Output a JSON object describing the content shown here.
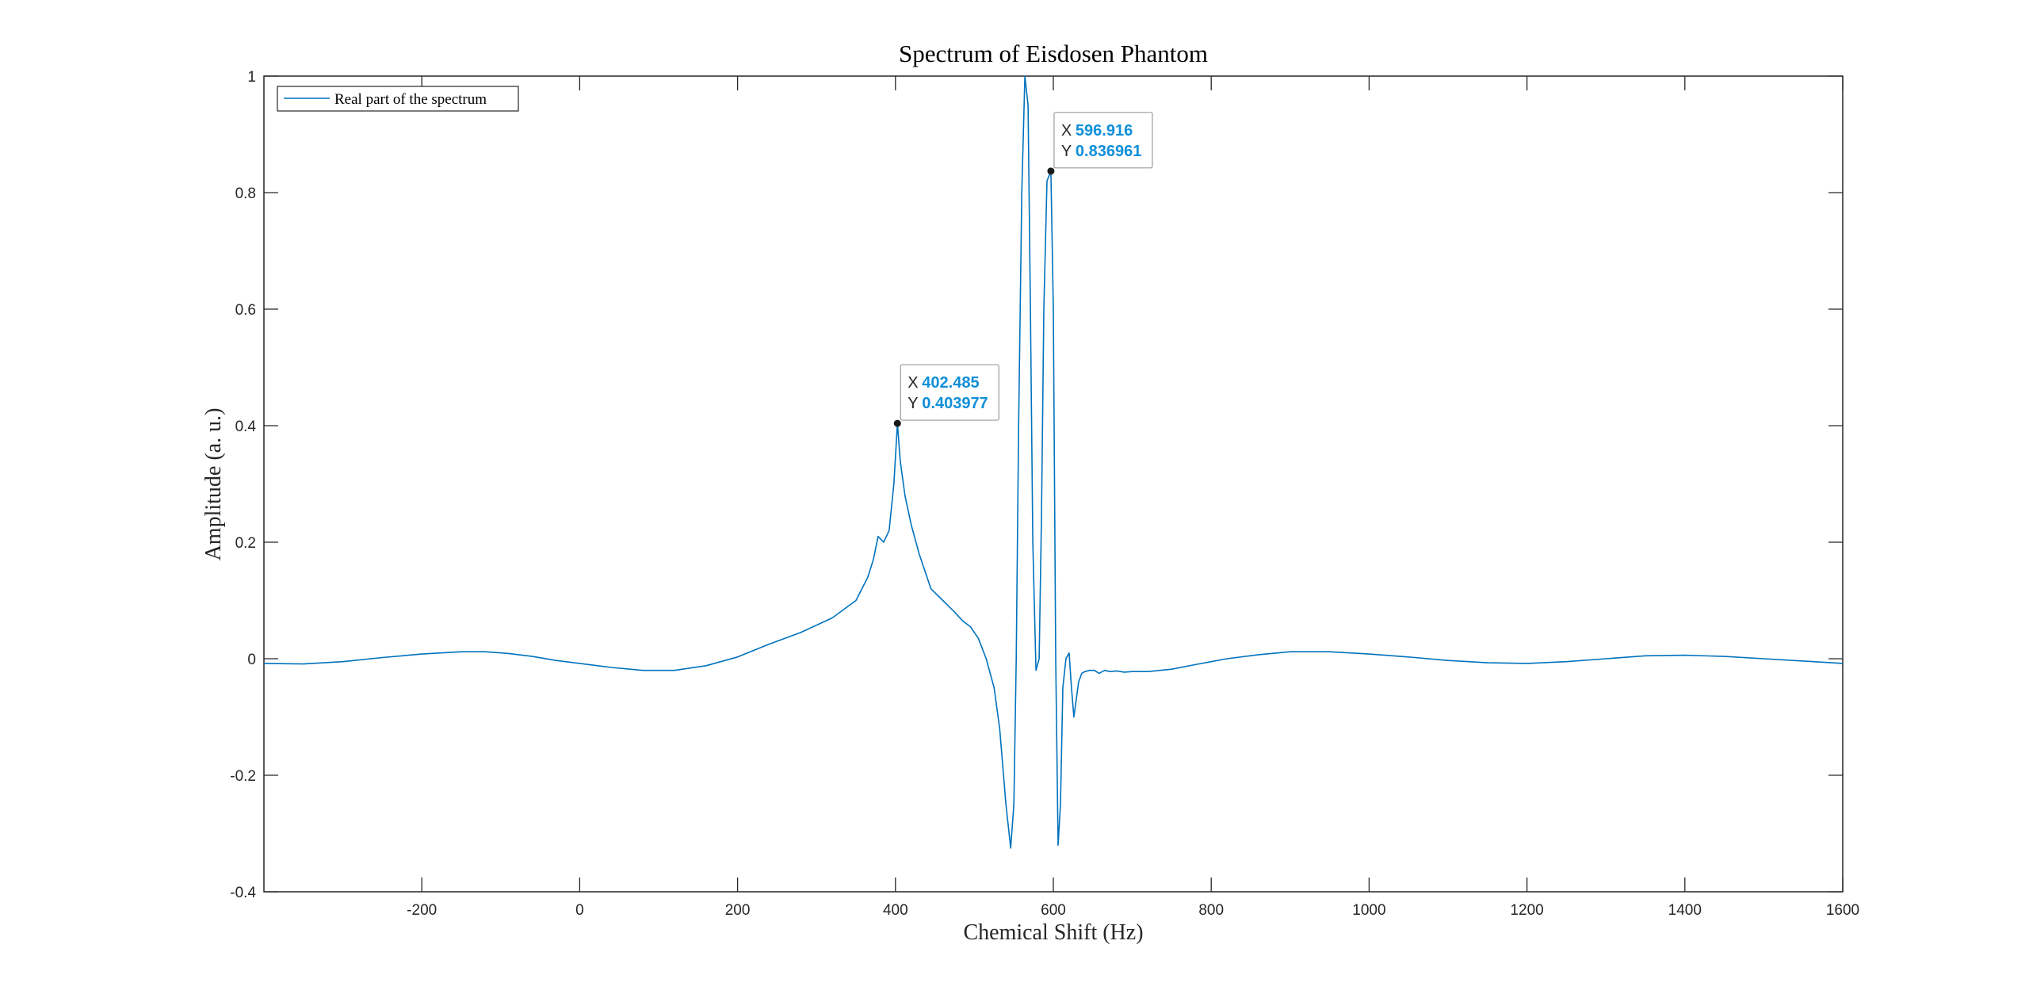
{
  "chart_data": {
    "type": "line",
    "title": "Spectrum of Eisdosen Phantom",
    "xlabel": "Chemical Shift (Hz)",
    "ylabel": "Amplitude (a. u.)",
    "xlim": [
      -400,
      1600
    ],
    "ylim": [
      -0.4,
      1
    ],
    "x_ticks": [
      -200,
      0,
      200,
      400,
      600,
      800,
      1000,
      1200,
      1400,
      1600
    ],
    "x_tick_labels": [
      "-200",
      "0",
      "200",
      "400",
      "600",
      "800",
      "1000",
      "1200",
      "1400",
      "1600"
    ],
    "y_ticks": [
      -0.4,
      -0.2,
      0,
      0.2,
      0.4,
      0.6,
      0.8,
      1
    ],
    "y_tick_labels": [
      "-0.4",
      "-0.2",
      "0",
      "0.2",
      "0.4",
      "0.6",
      "0.8",
      "1"
    ],
    "grid": false,
    "legend_position": "top-left",
    "line_color": "#0072BD",
    "series": [
      {
        "name": "Real part of the spectrum",
        "x": [
          -400,
          -350,
          -300,
          -250,
          -200,
          -150,
          -120,
          -90,
          -60,
          -30,
          0,
          40,
          80,
          120,
          160,
          200,
          240,
          280,
          320,
          350,
          365,
          372,
          378,
          385,
          392,
          398,
          402.485,
          406,
          412,
          420,
          430,
          445,
          460,
          475,
          485,
          495,
          505,
          515,
          525,
          532,
          540,
          546,
          550,
          553,
          556,
          560,
          564,
          568,
          571,
          574,
          578,
          582,
          585,
          588,
          592,
          596.916,
          600,
          603,
          606,
          609,
          612,
          616,
          620,
          623,
          626,
          629,
          632,
          636,
          640,
          646,
          652,
          658,
          665,
          672,
          680,
          690,
          700,
          720,
          750,
          780,
          820,
          860,
          900,
          950,
          1000,
          1050,
          1100,
          1150,
          1200,
          1250,
          1300,
          1350,
          1400,
          1450,
          1500,
          1550,
          1600
        ],
        "y": [
          -0.008,
          -0.009,
          -0.005,
          0.002,
          0.008,
          0.012,
          0.012,
          0.009,
          0.004,
          -0.003,
          -0.008,
          -0.015,
          -0.02,
          -0.02,
          -0.012,
          0.003,
          0.025,
          0.045,
          0.07,
          0.1,
          0.14,
          0.17,
          0.21,
          0.2,
          0.22,
          0.3,
          0.403977,
          0.34,
          0.28,
          0.23,
          0.18,
          0.12,
          0.1,
          0.08,
          0.065,
          0.055,
          0.035,
          0.0,
          -0.05,
          -0.12,
          -0.25,
          -0.325,
          -0.25,
          0.0,
          0.4,
          0.8,
          1.0,
          0.95,
          0.6,
          0.2,
          -0.02,
          0.0,
          0.25,
          0.6,
          0.82,
          0.836961,
          0.6,
          0.0,
          -0.32,
          -0.25,
          -0.05,
          0.0,
          0.01,
          -0.05,
          -0.1,
          -0.07,
          -0.04,
          -0.025,
          -0.022,
          -0.02,
          -0.02,
          -0.025,
          -0.02,
          -0.022,
          -0.021,
          -0.023,
          -0.022,
          -0.022,
          -0.018,
          -0.01,
          0.0,
          0.007,
          0.012,
          0.012,
          0.008,
          0.003,
          -0.003,
          -0.007,
          -0.008,
          -0.005,
          0.0,
          0.005,
          0.006,
          0.004,
          0.0,
          -0.004,
          -0.008
        ]
      }
    ],
    "datatips": [
      {
        "x_label": "X",
        "y_label": "Y",
        "x": 402.485,
        "y": 0.403977,
        "x_text": "402.485",
        "y_text": "0.403977"
      },
      {
        "x_label": "X",
        "y_label": "Y",
        "x": 596.916,
        "y": 0.836961,
        "x_text": "596.916",
        "y_text": "0.836961"
      }
    ]
  }
}
